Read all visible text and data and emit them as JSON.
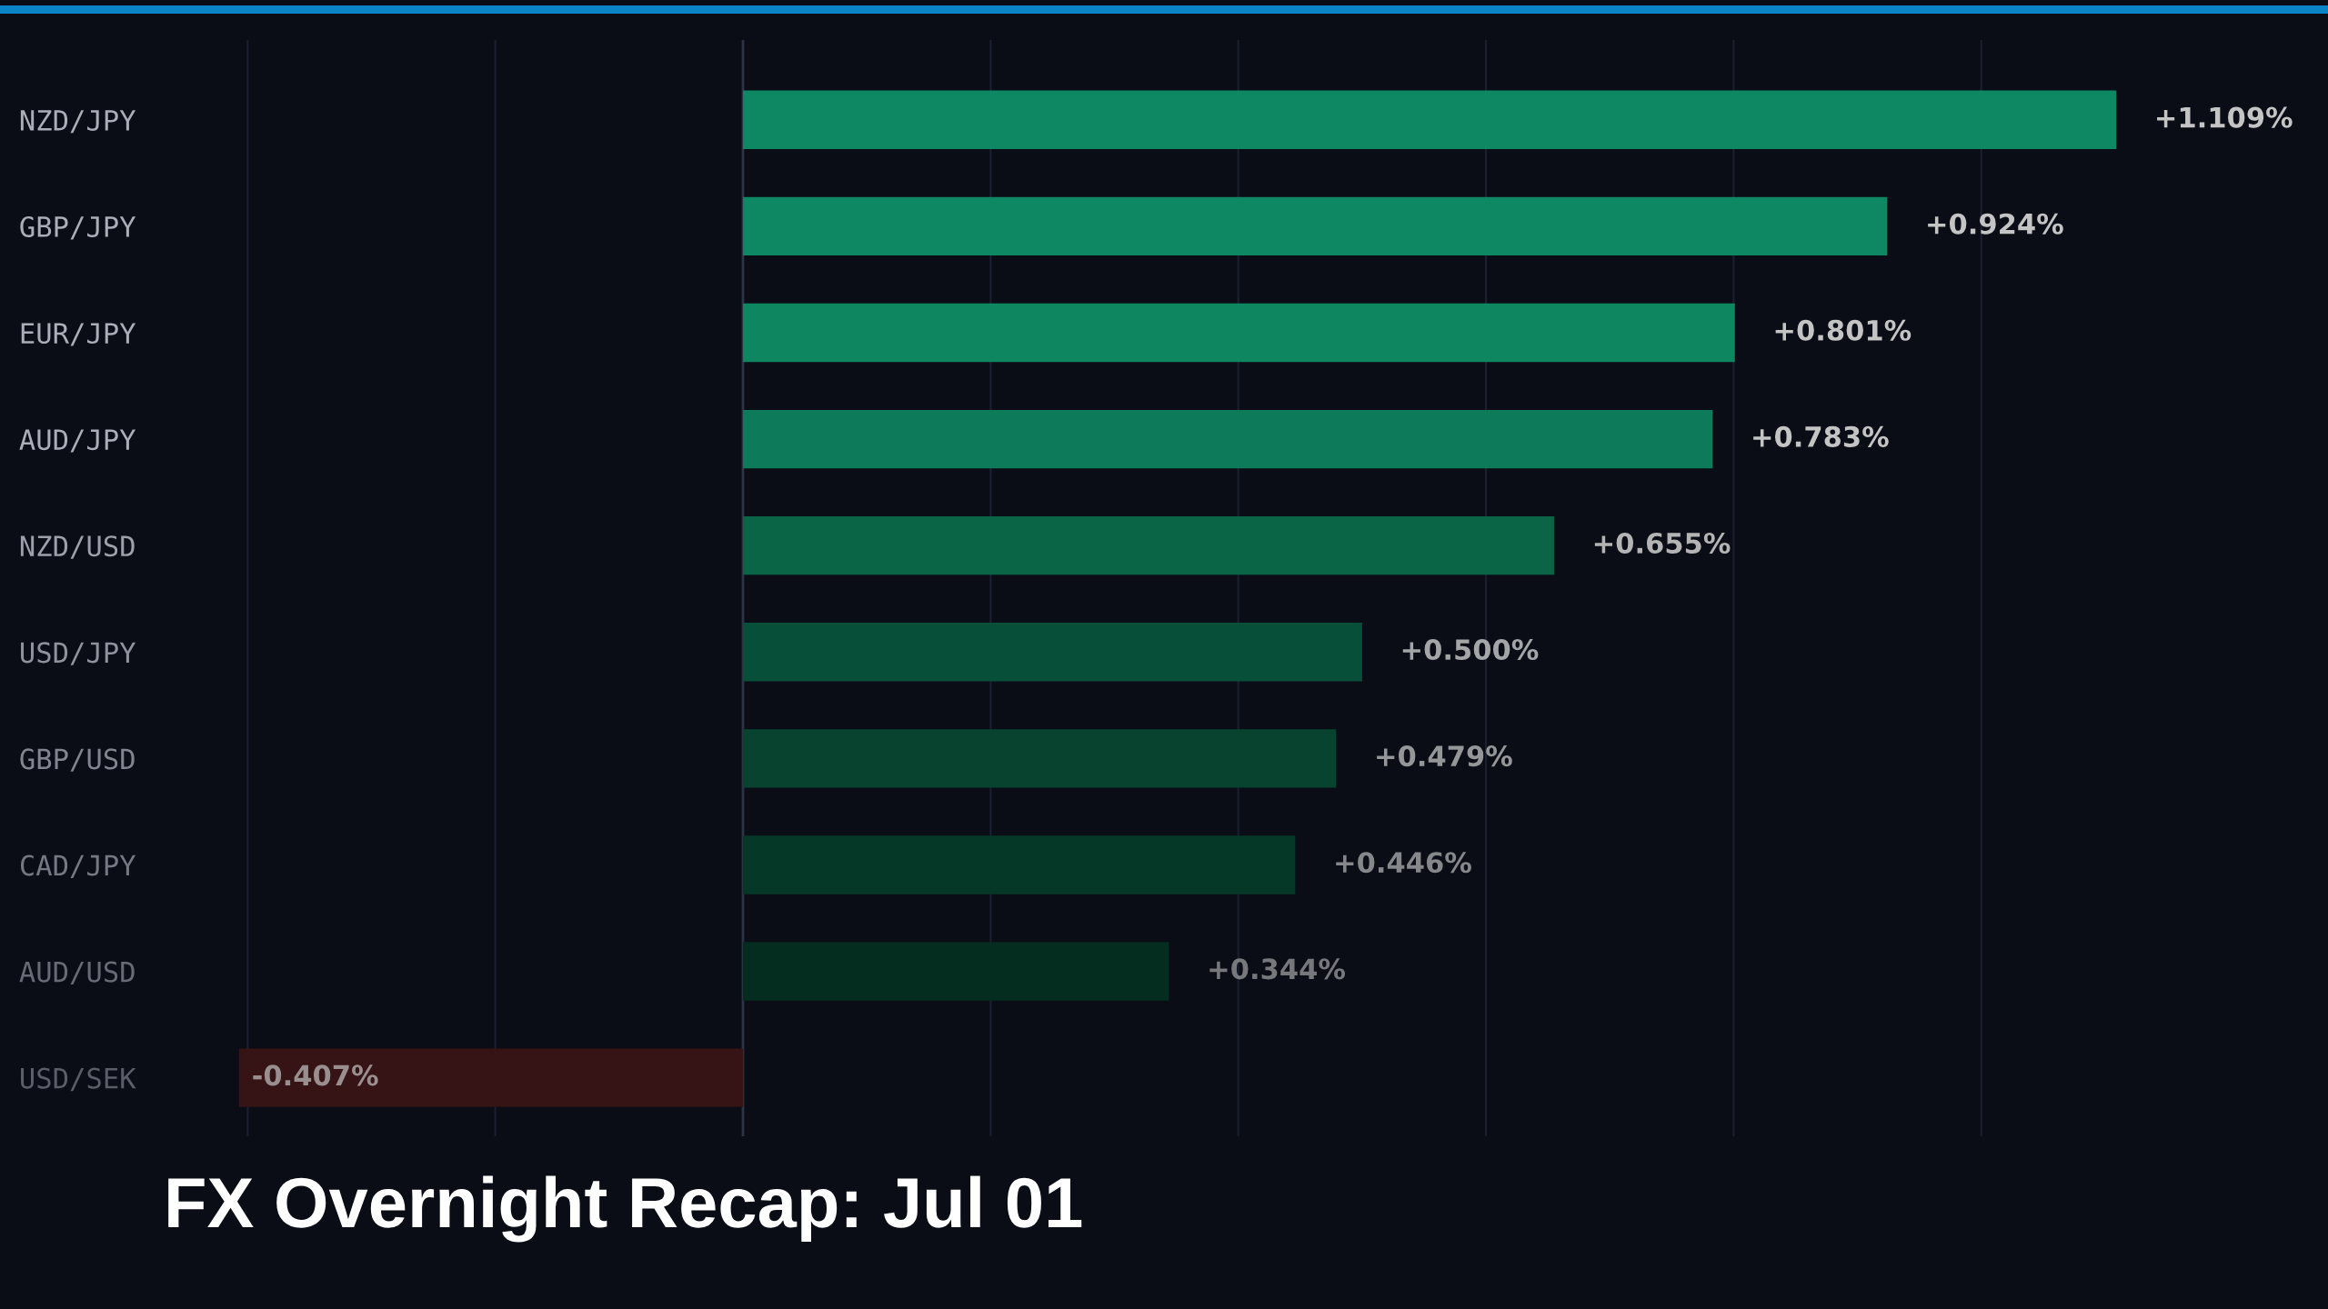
{
  "chart_data": {
    "type": "bar",
    "orientation": "horizontal",
    "title": "FX Overnight Recap: Jul 01",
    "categories": [
      "NZD/JPY",
      "GBP/JPY",
      "EUR/JPY",
      "AUD/JPY",
      "NZD/USD",
      "USD/JPY",
      "GBP/USD",
      "CAD/JPY",
      "AUD/USD",
      "USD/SEK"
    ],
    "values": [
      1.109,
      0.924,
      0.801,
      0.783,
      0.655,
      0.5,
      0.479,
      0.446,
      0.344,
      -0.407
    ],
    "colors": [
      "#0e8862",
      "#0e8862",
      "#0e8660",
      "#0d7b5a",
      "#0a6547",
      "#084f3a",
      "#07432f",
      "#063828",
      "#052d1f",
      "#361314"
    ],
    "value_labels": [
      "+1.109%",
      "+0.924%",
      "+0.801%",
      "+0.783%",
      "+0.655%",
      "+0.500%",
      "+0.479%",
      "+0.446%",
      "+0.344%",
      "-0.407%"
    ],
    "xlim": [
      -0.6,
      1.28
    ],
    "xticks": [
      {
        "value": -0.4,
        "label": null
      },
      {
        "value": -0.2,
        "label": null
      },
      {
        "value": 0,
        "label": null
      },
      {
        "value": 0.2,
        "label": null
      },
      {
        "value": 0.4,
        "label": null
      },
      {
        "value": 0.6,
        "label": null
      },
      {
        "value": 0.8,
        "label": null
      },
      {
        "value": 1.0,
        "label": null
      }
    ],
    "grid": "x",
    "tick_labels": "y"
  }
}
